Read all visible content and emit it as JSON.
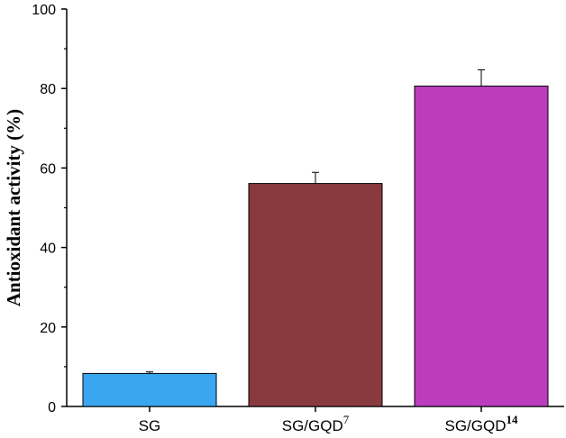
{
  "chart_data": {
    "type": "bar",
    "ylabel": "Antioxidant activity (%)",
    "ylim": [
      0,
      100
    ],
    "yticks": [
      0,
      20,
      40,
      60,
      80,
      100
    ],
    "grid": false,
    "categories": [
      {
        "base": "SG",
        "sup": "",
        "sup_bold": false,
        "value": 8.3,
        "error": 0.4,
        "color": "#3aa6f0"
      },
      {
        "base": "SG/GQD",
        "sup": "7",
        "sup_bold": false,
        "value": 56.1,
        "error": 2.8,
        "color": "#893a3e"
      },
      {
        "base": "SG/GQD",
        "sup": "14",
        "sup_bold": true,
        "value": 80.6,
        "error": 4.1,
        "color": "#bb3dbd"
      }
    ]
  }
}
